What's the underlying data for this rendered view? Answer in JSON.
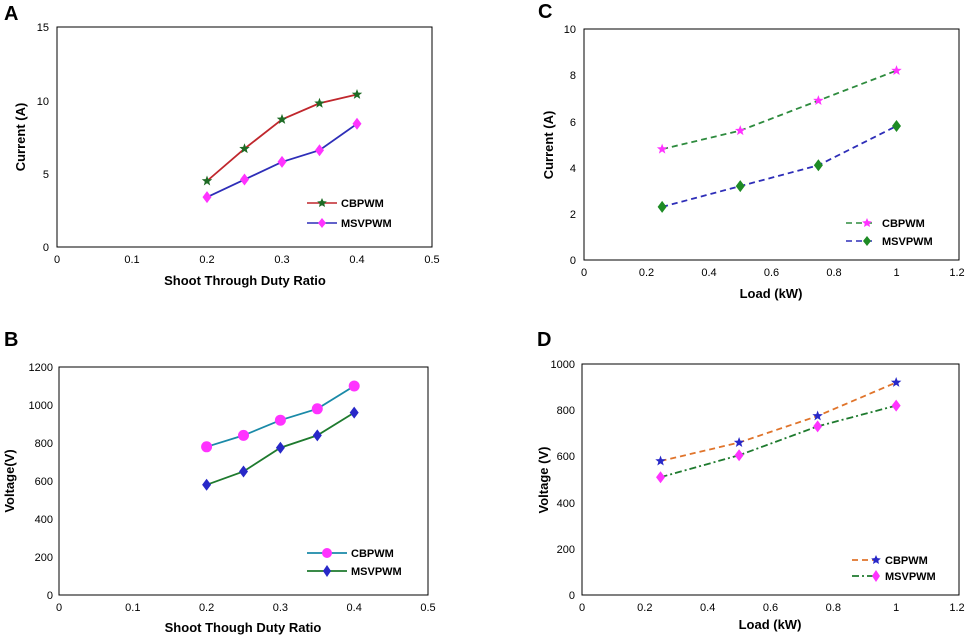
{
  "chart_data": [
    {
      "type": "line",
      "panel": "A",
      "title": "",
      "xlabel": "Shoot Through Duty Ratio",
      "ylabel": "Current (A)",
      "xlim": [
        0,
        0.5
      ],
      "ylim": [
        0,
        15
      ],
      "xticks": [
        0,
        0.1,
        0.2,
        0.3,
        0.4,
        0.5
      ],
      "yticks": [
        0,
        5,
        10,
        15
      ],
      "xtick_labels": [
        "0",
        "0.1",
        "0.2",
        "0.3",
        "0.4",
        "0.5"
      ],
      "ytick_labels": [
        "0",
        "5",
        "10",
        "15"
      ],
      "x": [
        0.2,
        0.25,
        0.3,
        0.35,
        0.4
      ],
      "legend": "bottom-right",
      "series": [
        {
          "name": "CBPWM",
          "values": [
            4.5,
            6.7,
            8.7,
            9.8,
            10.4
          ],
          "color": "#c0272d",
          "marker": "star",
          "marker_color": "#1e6b25",
          "dash": "solid"
        },
        {
          "name": "MSVPWM",
          "values": [
            3.4,
            4.6,
            5.8,
            6.6,
            8.4
          ],
          "color": "#2e2eb8",
          "marker": "diamond",
          "marker_color": "#ff33ff",
          "dash": "solid"
        }
      ]
    },
    {
      "type": "line",
      "panel": "C",
      "title": "",
      "xlabel": "Load (kW)",
      "ylabel": "Current (A)",
      "xlim": [
        0,
        1.2
      ],
      "ylim": [
        0,
        10
      ],
      "xticks": [
        0,
        0.2,
        0.4,
        0.6,
        0.8,
        1,
        1.2
      ],
      "yticks": [
        0,
        2,
        4,
        6,
        8,
        10
      ],
      "xtick_labels": [
        "0",
        "0.2",
        "0.4",
        "0.6",
        "0.8",
        "1",
        "1.2"
      ],
      "ytick_labels": [
        "0",
        "2",
        "4",
        "6",
        "8",
        "10"
      ],
      "x": [
        0.25,
        0.5,
        0.75,
        1
      ],
      "legend": "bottom-right",
      "series": [
        {
          "name": "CBPWM",
          "values": [
            4.8,
            5.6,
            6.9,
            8.2
          ],
          "color": "#2e8b3e",
          "marker": "star",
          "marker_color": "#ff33ff",
          "dash": "dashed"
        },
        {
          "name": "MSVPWM",
          "values": [
            2.3,
            3.2,
            4.1,
            5.8
          ],
          "color": "#2e2eb8",
          "marker": "diamond",
          "marker_color": "#1e8b25",
          "dash": "dashed"
        }
      ]
    },
    {
      "type": "line",
      "panel": "B",
      "title": "",
      "xlabel": "Shoot Though Duty Ratio",
      "ylabel": "Voltage(V)",
      "xlim": [
        0,
        0.5
      ],
      "ylim": [
        0,
        1200
      ],
      "xticks": [
        0,
        0.1,
        0.2,
        0.3,
        0.4,
        0.5
      ],
      "yticks": [
        0,
        200,
        400,
        600,
        800,
        1000,
        1200
      ],
      "xtick_labels": [
        "0",
        "0.1",
        "0.2",
        "0.3",
        "0.4",
        "0.5"
      ],
      "ytick_labels": [
        "0",
        "200",
        "400",
        "600",
        "800",
        "1000",
        "1200"
      ],
      "x": [
        0.2,
        0.25,
        0.3,
        0.35,
        0.4
      ],
      "legend": "bottom-right",
      "series": [
        {
          "name": "CBPWM",
          "values": [
            780,
            840,
            920,
            980,
            1100
          ],
          "color": "#1a8aa8",
          "marker": "circle",
          "marker_color": "#ff33ff",
          "dash": "solid"
        },
        {
          "name": "MSVPWM",
          "values": [
            580,
            650,
            775,
            840,
            960
          ],
          "color": "#1e7a2e",
          "marker": "diamond",
          "marker_color": "#2828c8",
          "dash": "solid"
        }
      ]
    },
    {
      "type": "line",
      "panel": "D",
      "title": "",
      "xlabel": "Load (kW)",
      "ylabel": "Voltage (V)",
      "xlim": [
        0,
        1.2
      ],
      "ylim": [
        0,
        1000
      ],
      "xticks": [
        0,
        0.2,
        0.4,
        0.6,
        0.8,
        1,
        1.2
      ],
      "yticks": [
        0,
        200,
        400,
        600,
        800,
        1000
      ],
      "xtick_labels": [
        "0",
        "0.2",
        "0.4",
        "0.6",
        "0.8",
        "1",
        "1.2"
      ],
      "ytick_labels": [
        "0",
        "200",
        "400",
        "600",
        "800",
        "1000"
      ],
      "x": [
        0.25,
        0.5,
        0.75,
        1
      ],
      "legend": "bottom-right",
      "series": [
        {
          "name": "CBPWM",
          "values": [
            580,
            660,
            775,
            920
          ],
          "color": "#e0742b",
          "marker": "star",
          "marker_color": "#2828c8",
          "dash": "dashed"
        },
        {
          "name": "MSVPWM",
          "values": [
            510,
            605,
            730,
            820
          ],
          "color": "#1e7a2e",
          "marker": "diamond",
          "marker_color": "#ff33ff",
          "dash": "dashdot"
        }
      ]
    }
  ]
}
